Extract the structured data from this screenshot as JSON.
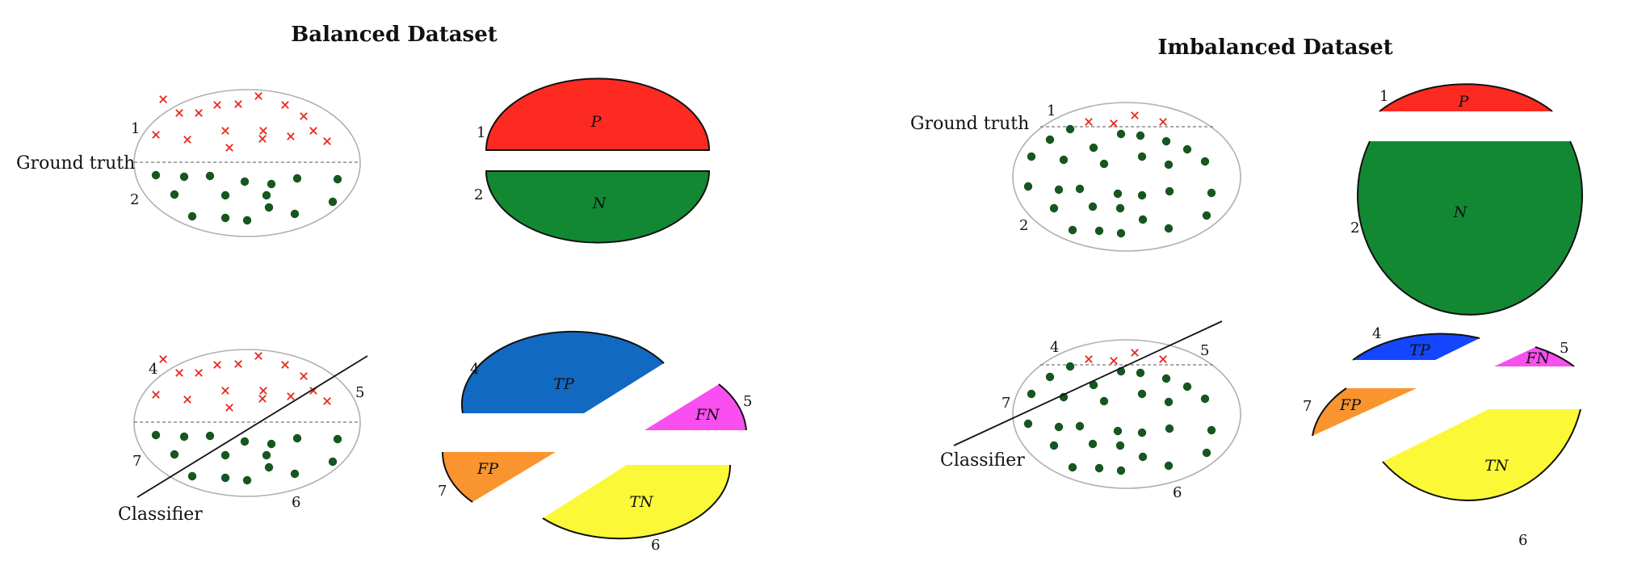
{
  "panels": {
    "balanced": {
      "title": "Balanced Dataset",
      "ground_truth": "Ground truth",
      "classifier": "Classifier",
      "regions": {
        "p": "P",
        "n": "N",
        "tp": "TP",
        "fn": "FN",
        "fp": "FP",
        "tn": "TN"
      },
      "numbers": {
        "n1": "1",
        "n2": "2",
        "n4": "4",
        "n5": "5",
        "n6": "6",
        "n7": "7"
      }
    },
    "imbalanced": {
      "title": "Imbalanced Dataset",
      "ground_truth": "Ground truth",
      "classifier": "Classifier",
      "regions": {
        "p": "P",
        "n": "N",
        "tp": "TP",
        "fn": "FN",
        "fp": "FP",
        "tn": "TN"
      },
      "numbers": {
        "n1": "1",
        "n2": "2",
        "n4": "4",
        "n5": "5",
        "n6": "6",
        "n7": "7"
      }
    }
  },
  "colors": {
    "positive": "#fd2a22",
    "negative": "#138833",
    "tp_balanced": "#1269c1",
    "tp_imbalanced": "#1445ff",
    "fn": "#f94ff0",
    "fp": "#fa942e",
    "tn": "#fbf937",
    "cross": "#e8281c",
    "dot": "#16561f"
  }
}
